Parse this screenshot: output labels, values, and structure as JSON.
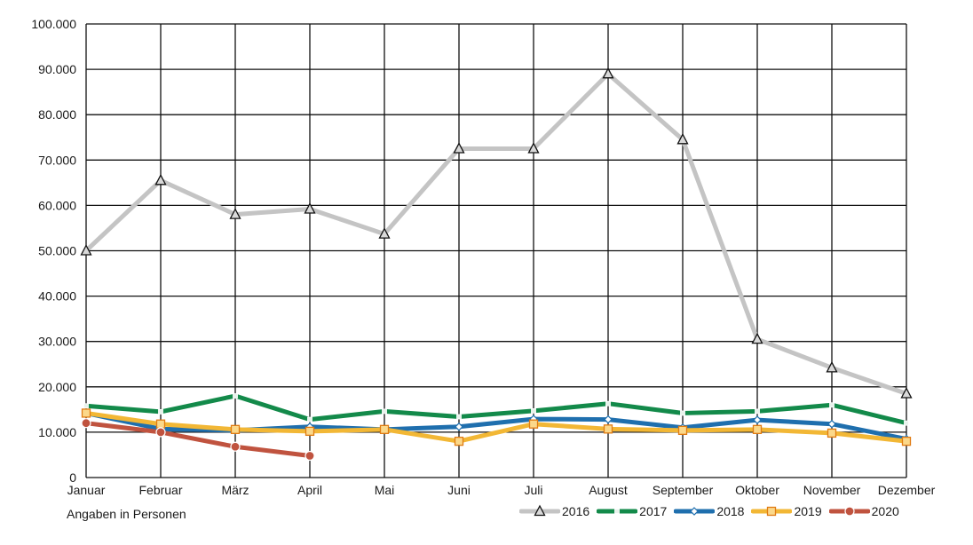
{
  "chart_data": {
    "type": "line",
    "categories": [
      "Januar",
      "Februar",
      "März",
      "April",
      "Mai",
      "Juni",
      "Juli",
      "August",
      "September",
      "Oktober",
      "November",
      "Dezember"
    ],
    "y_ticks": [
      "0",
      "10.000",
      "20.000",
      "30.000",
      "40.000",
      "50.000",
      "60.000",
      "70.000",
      "80.000",
      "90.000",
      "100.000"
    ],
    "ylim": [
      0,
      100000
    ],
    "grid": true,
    "legend_position": "bottom-right",
    "note": "Angaben in Personen",
    "series": [
      {
        "name": "2016",
        "color": "#c4c4c4",
        "marker": "triangle",
        "values": [
          50000,
          65500,
          58000,
          59200,
          53700,
          72500,
          72500,
          89000,
          74500,
          30500,
          24200,
          18500
        ]
      },
      {
        "name": "2017",
        "color": "#138a4a",
        "marker": "square-small",
        "values": [
          15800,
          14500,
          18000,
          12800,
          14600,
          13400,
          14700,
          16300,
          14200,
          14600,
          16000,
          12000
        ]
      },
      {
        "name": "2018",
        "color": "#1f6fae",
        "marker": "diamond",
        "values": [
          14200,
          10700,
          10400,
          11200,
          10600,
          11200,
          12900,
          12800,
          11000,
          12700,
          11800,
          8500
        ]
      },
      {
        "name": "2019",
        "color": "#f2b735",
        "marker": "square",
        "values": [
          14200,
          11800,
          10600,
          10200,
          10600,
          8000,
          11800,
          10700,
          10400,
          10600,
          9800,
          8000
        ]
      },
      {
        "name": "2020",
        "color": "#c0533f",
        "marker": "circle",
        "values": [
          12000,
          10000,
          6800,
          4800,
          null,
          null,
          null,
          null,
          null,
          null,
          null,
          null
        ]
      }
    ]
  }
}
